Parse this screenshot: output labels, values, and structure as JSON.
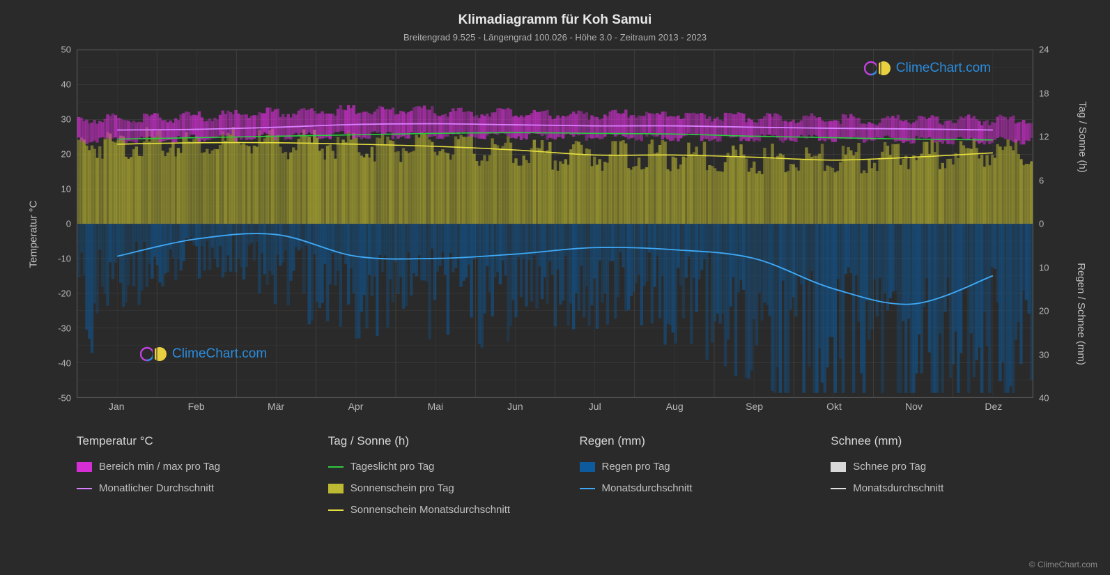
{
  "title": "Klimadiagramm für Koh Samui",
  "subtitle": "Breitengrad 9.525 - Längengrad 100.026 - Höhe 3.0 - Zeitraum 2013 - 2023",
  "y_left": {
    "label": "Temperatur °C",
    "min": -50,
    "max": 50,
    "step": 10
  },
  "y_right_top": {
    "label": "Tag / Sonne (h)",
    "min": 0,
    "max": 24,
    "step": 6
  },
  "y_right_bot": {
    "label": "Regen / Schnee (mm)",
    "min": 0,
    "max": 40,
    "step": 10
  },
  "months": [
    "Jan",
    "Feb",
    "Mär",
    "Apr",
    "Mai",
    "Jun",
    "Jul",
    "Aug",
    "Sep",
    "Okt",
    "Nov",
    "Dez"
  ],
  "colors": {
    "background": "#2a2a2a",
    "grid": "#5a5a5a",
    "text": "#c0c0c0",
    "magenta_range": "#d52ed5",
    "magenta_line": "#d880ff",
    "green_line": "#2ecc40",
    "yellow_fill": "#bdb932",
    "yellow_line": "#e8e040",
    "blue_fill": "#0d5a9c",
    "blue_line": "#3fa8f5",
    "white_line": "#e0e0e0",
    "white_fill": "#d8d8d8"
  },
  "series": {
    "temp_avg_monthly": [
      27.0,
      27.2,
      27.8,
      28.6,
      28.8,
      28.5,
      28.2,
      28.2,
      27.8,
      27.5,
      27.3,
      27.0
    ],
    "temp_range_low": [
      24.0,
      24.3,
      25.0,
      25.5,
      25.5,
      25.5,
      25.0,
      25.0,
      24.8,
      24.5,
      24.3,
      24.0
    ],
    "temp_range_high": [
      30.0,
      30.5,
      31.5,
      32.5,
      32.8,
      32.0,
      31.5,
      31.5,
      31.0,
      30.5,
      30.0,
      30.0
    ],
    "daylight_h": [
      11.7,
      11.9,
      12.1,
      12.3,
      12.5,
      12.6,
      12.5,
      12.4,
      12.1,
      11.9,
      11.7,
      11.6
    ],
    "sunshine_h": [
      11.0,
      11.2,
      11.2,
      11.0,
      10.7,
      10.2,
      9.5,
      9.5,
      9.2,
      8.8,
      9.2,
      9.8
    ],
    "sun_fill_h": [
      11.0,
      11.2,
      11.2,
      11.0,
      10.7,
      10.2,
      9.5,
      9.5,
      9.2,
      8.8,
      9.2,
      9.8
    ],
    "rain_avg_mm": [
      7.5,
      3.5,
      2.5,
      7.5,
      8.0,
      7.0,
      5.5,
      6.0,
      8.0,
      15.0,
      18.5,
      12.0
    ],
    "rain_fill_mm": [
      22,
      10,
      8,
      18,
      18,
      20,
      16,
      18,
      22,
      30,
      34,
      30
    ]
  },
  "legend": {
    "temp": {
      "header": "Temperatur °C",
      "items": [
        {
          "swatch": "magenta",
          "label": "Bereich min / max pro Tag"
        },
        {
          "line": "magentaL",
          "label": "Monatlicher Durchschnitt"
        }
      ]
    },
    "sun": {
      "header": "Tag / Sonne (h)",
      "items": [
        {
          "line": "green",
          "label": "Tageslicht pro Tag"
        },
        {
          "swatch": "yellow",
          "label": "Sonnenschein pro Tag"
        },
        {
          "line": "yellowL",
          "label": "Sonnenschein Monatsdurchschnitt"
        }
      ]
    },
    "rain": {
      "header": "Regen (mm)",
      "items": [
        {
          "swatch": "blue",
          "label": "Regen pro Tag"
        },
        {
          "line": "blueL",
          "label": "Monatsdurchschnitt"
        }
      ]
    },
    "snow": {
      "header": "Schnee (mm)",
      "items": [
        {
          "swatch": "white",
          "label": "Schnee pro Tag"
        },
        {
          "line": "whiteL",
          "label": "Monatsdurchschnitt"
        }
      ]
    }
  },
  "watermark_text": "ClimeChart.com",
  "copyright": "© ClimeChart.com"
}
